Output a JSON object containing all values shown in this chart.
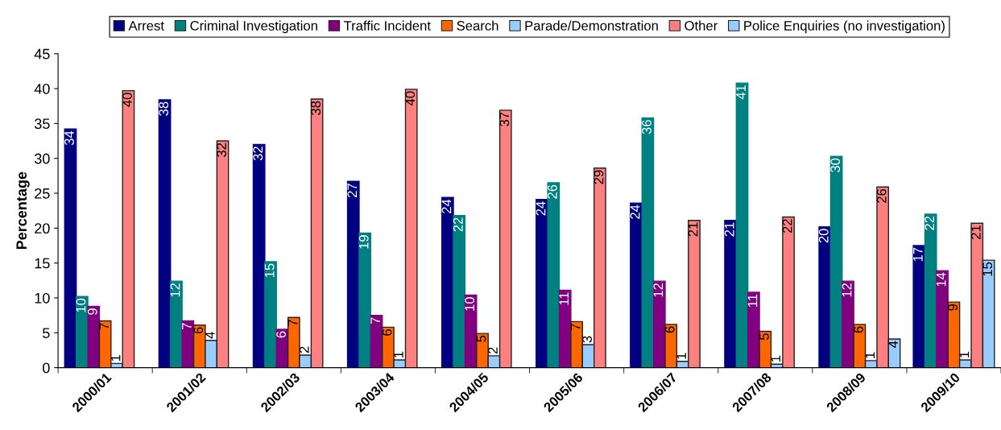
{
  "chart_data": {
    "type": "bar",
    "ylabel": "Percentage",
    "categories": [
      "2000/01",
      "2001/02",
      "2002/03",
      "2003/04",
      "2004/05",
      "2005/06",
      "2006/07",
      "2007/08",
      "2008/09",
      "2009/10"
    ],
    "series": [
      {
        "name": "Arrest",
        "color": "#000080",
        "values": [
          34.2,
          38.4,
          32.0,
          26.7,
          24.4,
          24.1,
          23.6,
          21.1,
          20.2,
          17.5
        ],
        "value_labels": [
          "34",
          "38",
          "32",
          "27",
          "24",
          "24",
          "24",
          "21",
          "20",
          "17"
        ]
      },
      {
        "name": "Criminal Investigation",
        "color": "#008080",
        "values": [
          10.2,
          12.4,
          15.2,
          19.3,
          21.8,
          26.5,
          35.8,
          40.8,
          30.3,
          22.0
        ],
        "value_labels": [
          "10",
          "12",
          "15",
          "19",
          "22",
          "26",
          "36",
          "41",
          "30",
          "22"
        ]
      },
      {
        "name": "Traffic Incident",
        "color": "#800080",
        "values": [
          8.8,
          6.7,
          5.5,
          7.5,
          10.4,
          11.1,
          12.4,
          10.8,
          12.4,
          13.9
        ],
        "value_labels": [
          "9",
          "7",
          "6",
          "7",
          "10",
          "11",
          "12",
          "11",
          "12",
          "14"
        ]
      },
      {
        "name": "Search",
        "color": "#ff6600",
        "values": [
          6.7,
          6.1,
          7.2,
          5.8,
          4.9,
          6.6,
          6.2,
          5.2,
          6.2,
          9.4
        ],
        "value_labels": [
          "7",
          "6",
          "7",
          "6",
          "5",
          "7",
          "6",
          "5",
          "6",
          "9"
        ]
      },
      {
        "name": "Parade/Demonstration",
        "color": "#99ccff",
        "values": [
          0.6,
          3.9,
          1.8,
          1.1,
          1.7,
          3.3,
          0.9,
          0.5,
          1.0,
          1.1
        ],
        "value_labels": [
          "1",
          "4",
          "2",
          "1",
          "2",
          "3",
          "1",
          "1",
          "1",
          "1"
        ]
      },
      {
        "name": "Other",
        "color": "#ff8080",
        "values": [
          39.7,
          32.5,
          38.5,
          39.9,
          36.9,
          28.6,
          21.1,
          21.6,
          25.9,
          20.7
        ],
        "value_labels": [
          "40",
          "32",
          "38",
          "40",
          "37",
          "29",
          "21",
          "22",
          "26",
          "21"
        ]
      },
      {
        "name": "Police Enquiries (no investigation)",
        "color": "#99ccff",
        "values": [
          null,
          null,
          null,
          null,
          null,
          null,
          null,
          null,
          4.1,
          15.4
        ],
        "value_labels": [
          null,
          null,
          null,
          null,
          null,
          null,
          null,
          null,
          "4",
          "15"
        ]
      }
    ],
    "ylim": [
      0,
      45
    ],
    "yticks": [
      0,
      5,
      10,
      15,
      20,
      25,
      30,
      35,
      40,
      45
    ],
    "grid": false,
    "legend": "top"
  }
}
